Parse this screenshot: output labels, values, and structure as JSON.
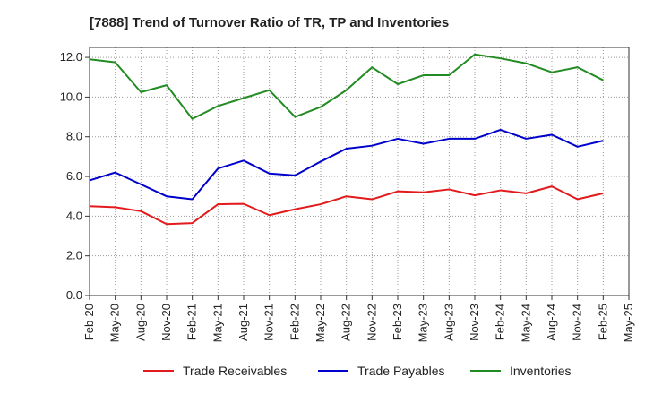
{
  "chart_data": {
    "type": "line",
    "title": "[7888]  Trend of Turnover Ratio of TR, TP and Inventories",
    "xlabel": "",
    "ylabel": "",
    "ylim": [
      0,
      12.5
    ],
    "yticks": [
      "0.0",
      "2.0",
      "4.0",
      "6.0",
      "8.0",
      "10.0",
      "12.0"
    ],
    "x_tick_labels": [
      "Feb-20",
      "May-20",
      "Aug-20",
      "Nov-20",
      "Feb-21",
      "May-21",
      "Aug-21",
      "Nov-21",
      "Feb-22",
      "May-22",
      "Aug-22",
      "Nov-22",
      "Feb-23",
      "May-23",
      "Aug-23",
      "Nov-23",
      "Feb-24",
      "May-24",
      "Aug-24",
      "Nov-24",
      "Feb-25",
      "May-25"
    ],
    "x": [
      "Feb-20",
      "May-20",
      "Aug-20",
      "Nov-20",
      "Feb-21",
      "May-21",
      "Aug-21",
      "Nov-21",
      "Feb-22",
      "May-22",
      "Aug-22",
      "Nov-22",
      "Feb-23",
      "May-23",
      "Aug-23",
      "Nov-23",
      "Feb-24",
      "May-24",
      "Aug-24",
      "Nov-24",
      "Feb-25"
    ],
    "grid": true,
    "legend_position": "bottom",
    "series": [
      {
        "name": "Trade Receivables",
        "color": "#e31a1c",
        "values": [
          4.5,
          4.45,
          4.25,
          3.6,
          3.65,
          4.6,
          4.62,
          4.05,
          4.35,
          4.6,
          5.0,
          4.85,
          5.25,
          5.2,
          5.35,
          5.05,
          5.3,
          5.15,
          5.5,
          4.85,
          5.15
        ]
      },
      {
        "name": "Trade Payables",
        "color": "#0000cc",
        "values": [
          5.8,
          6.2,
          5.6,
          5.0,
          4.85,
          6.4,
          6.8,
          6.15,
          6.05,
          6.75,
          7.4,
          7.55,
          7.9,
          7.65,
          7.9,
          7.9,
          8.35,
          7.9,
          8.1,
          7.5,
          7.8
        ]
      },
      {
        "name": "Inventories",
        "color": "#228b22",
        "values": [
          11.9,
          11.75,
          10.25,
          10.6,
          8.9,
          9.55,
          9.95,
          10.35,
          9.0,
          9.5,
          10.35,
          11.5,
          10.65,
          11.1,
          11.1,
          12.15,
          11.95,
          11.7,
          11.25,
          11.5,
          10.85
        ]
      }
    ]
  }
}
